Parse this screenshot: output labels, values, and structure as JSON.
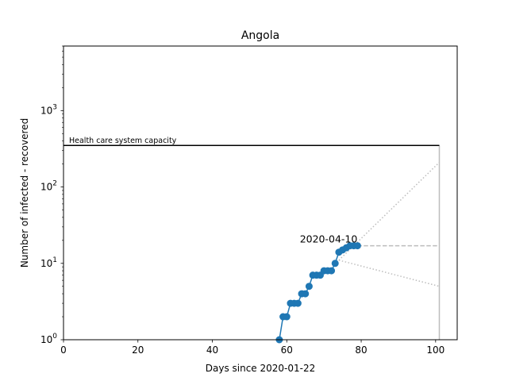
{
  "chart_data": {
    "type": "line",
    "title": "Angola",
    "xlabel": "Days since 2020-01-22",
    "ylabel": "Number of infected - recovered",
    "y_scale": "log",
    "xlim": [
      0,
      105.8
    ],
    "ylim": [
      1,
      7000
    ],
    "x_ticks": [
      0,
      20,
      40,
      60,
      80,
      100
    ],
    "y_ticks": [
      {
        "value": 1,
        "base": "10",
        "exp": "0"
      },
      {
        "value": 10,
        "base": "10",
        "exp": "1"
      },
      {
        "value": 100,
        "base": "10",
        "exp": "2"
      },
      {
        "value": 1000,
        "base": "10",
        "exp": "3"
      }
    ],
    "series": [
      {
        "color": "#1f77b4",
        "x": [
          58,
          59,
          60,
          61,
          62,
          63,
          64,
          65,
          66,
          67,
          68,
          69,
          70,
          71,
          72,
          73,
          74,
          75,
          76,
          77,
          78,
          79
        ],
        "y": [
          1,
          2,
          2,
          3,
          3,
          3,
          4,
          4,
          5,
          7,
          7,
          7,
          8,
          8,
          8,
          10,
          14,
          15,
          16,
          17,
          17,
          17
        ]
      }
    ],
    "capacity": {
      "label": "Health care system capacity",
      "value": 350,
      "x_start": 0,
      "x_end": 101,
      "color": "#000000"
    },
    "vertical_marker": {
      "x": 101,
      "color": "#bdbdbd"
    },
    "projections": [
      {
        "style": "dashed",
        "color": "#bdbdbd",
        "x": [
          79,
          101
        ],
        "y": [
          17,
          17
        ]
      },
      {
        "style": "dotted",
        "color": "#bdbdbd",
        "x": [
          74,
          101
        ],
        "y": [
          11,
          210
        ]
      },
      {
        "style": "dotted",
        "color": "#bdbdbd",
        "x": [
          74,
          101
        ],
        "y": [
          11,
          5
        ]
      }
    ],
    "annotation": {
      "text": "2020-04-10",
      "x": 79,
      "y": 17
    }
  }
}
